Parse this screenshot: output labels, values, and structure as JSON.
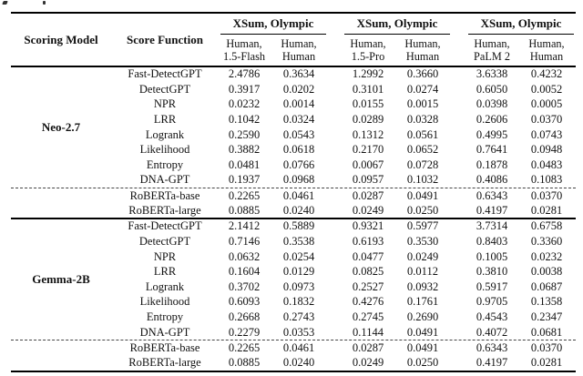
{
  "table": {
    "columns": {
      "scoring_model": "Scoring Model",
      "score_function": "Score Function"
    },
    "groups": [
      {
        "title": "XSum, Olympic",
        "sub": [
          [
            "Human,",
            "1.5-Flash"
          ],
          [
            "Human,",
            "Human"
          ]
        ]
      },
      {
        "title": "XSum, Olympic",
        "sub": [
          [
            "Human,",
            "1.5-Pro"
          ],
          [
            "Human,",
            "Human"
          ]
        ]
      },
      {
        "title": "XSum, Olympic",
        "sub": [
          [
            "Human,",
            "PaLM 2"
          ],
          [
            "Human,",
            "Human"
          ]
        ]
      }
    ],
    "blocks": [
      {
        "model": "Neo-2.7",
        "rows": [
          {
            "fn": "Fast-DetectGPT",
            "values": [
              "2.4786",
              "0.3634",
              "1.2992",
              "0.3660",
              "3.6338",
              "0.4232"
            ]
          },
          {
            "fn": "DetectGPT",
            "values": [
              "0.3917",
              "0.0202",
              "0.3101",
              "0.0274",
              "0.6050",
              "0.0052"
            ]
          },
          {
            "fn": "NPR",
            "values": [
              "0.0232",
              "0.0014",
              "0.0155",
              "0.0015",
              "0.0398",
              "0.0005"
            ]
          },
          {
            "fn": "LRR",
            "values": [
              "0.1042",
              "0.0324",
              "0.0289",
              "0.0328",
              "0.2606",
              "0.0370"
            ]
          },
          {
            "fn": "Logrank",
            "values": [
              "0.2590",
              "0.0543",
              "0.1312",
              "0.0561",
              "0.4995",
              "0.0743"
            ]
          },
          {
            "fn": "Likelihood",
            "values": [
              "0.3882",
              "0.0618",
              "0.2170",
              "0.0652",
              "0.7641",
              "0.0948"
            ]
          },
          {
            "fn": "Entropy",
            "values": [
              "0.0481",
              "0.0766",
              "0.0067",
              "0.0728",
              "0.1878",
              "0.0483"
            ]
          },
          {
            "fn": "DNA-GPT",
            "values": [
              "0.1937",
              "0.0968",
              "0.0957",
              "0.1032",
              "0.4086",
              "0.1083"
            ]
          },
          {
            "fn": "RoBERTa-base",
            "values": [
              "0.2265",
              "0.0461",
              "0.0287",
              "0.0491",
              "0.6343",
              "0.0370"
            ],
            "dashed_above": true
          },
          {
            "fn": "RoBERTa-large",
            "values": [
              "0.0885",
              "0.0240",
              "0.0249",
              "0.0250",
              "0.4197",
              "0.0281"
            ]
          }
        ]
      },
      {
        "model": "Gemma-2B",
        "rows": [
          {
            "fn": "Fast-DetectGPT",
            "values": [
              "2.1412",
              "0.5889",
              "0.9321",
              "0.5977",
              "3.7314",
              "0.6758"
            ]
          },
          {
            "fn": "DetectGPT",
            "values": [
              "0.7146",
              "0.3538",
              "0.6193",
              "0.3530",
              "0.8403",
              "0.3360"
            ]
          },
          {
            "fn": "NPR",
            "values": [
              "0.0632",
              "0.0254",
              "0.0477",
              "0.0249",
              "0.1005",
              "0.0232"
            ]
          },
          {
            "fn": "LRR",
            "values": [
              "0.1604",
              "0.0129",
              "0.0825",
              "0.0112",
              "0.3810",
              "0.0038"
            ]
          },
          {
            "fn": "Logrank",
            "values": [
              "0.3702",
              "0.0973",
              "0.2527",
              "0.0932",
              "0.5917",
              "0.0687"
            ]
          },
          {
            "fn": "Likelihood",
            "values": [
              "0.6093",
              "0.1832",
              "0.4276",
              "0.1761",
              "0.9705",
              "0.1358"
            ]
          },
          {
            "fn": "Entropy",
            "values": [
              "0.2668",
              "0.2743",
              "0.2745",
              "0.2690",
              "0.4543",
              "0.2347"
            ]
          },
          {
            "fn": "DNA-GPT",
            "values": [
              "0.2279",
              "0.0353",
              "0.1144",
              "0.0491",
              "0.4072",
              "0.0681"
            ]
          },
          {
            "fn": "RoBERTa-base",
            "values": [
              "0.2265",
              "0.0461",
              "0.0287",
              "0.0491",
              "0.6343",
              "0.0370"
            ],
            "dashed_above": true
          },
          {
            "fn": "RoBERTa-large",
            "values": [
              "0.0885",
              "0.0240",
              "0.0249",
              "0.0250",
              "0.4197",
              "0.0281"
            ]
          }
        ]
      }
    ]
  }
}
